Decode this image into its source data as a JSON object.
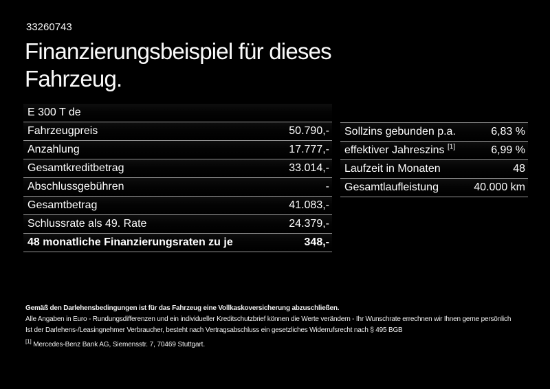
{
  "page": {
    "id_number": "33260743",
    "title_line1": "Finanzierungsbeispiel für dieses",
    "title_line2": "Fahrzeug."
  },
  "finance_table": {
    "model": "E 300 T de",
    "rows": [
      {
        "label": "Fahrzeugpreis",
        "value": "50.790,-"
      },
      {
        "label": "Anzahlung",
        "value": "17.777,-"
      },
      {
        "label": "Gesamtkreditbetrag",
        "value": "33.014,-"
      },
      {
        "label": "Abschlussgebühren",
        "value": "-"
      },
      {
        "label": "Gesamtbetrag",
        "value": "41.083,-"
      },
      {
        "label": "Schlussrate als 49. Rate",
        "value": "24.379,-"
      }
    ],
    "total_row": {
      "label": "48 monatliche Finanzierungsraten zu je",
      "value": "348,-"
    }
  },
  "conditions_table": {
    "rows": [
      {
        "label": "Sollzins gebunden p.a.",
        "value": "6,83 %"
      },
      {
        "label": "effektiver Jahreszins",
        "footnote_marker": "[1]",
        "value": "6,99 %"
      },
      {
        "label": "Laufzeit in Monaten",
        "value": "48"
      },
      {
        "label": "Gesamtlaufleistung",
        "value": "40.000 km"
      }
    ]
  },
  "disclaimer": {
    "insurance_line": "Gemäß den Darlehensbedingungen ist für das Fahrzeug eine Vollkaskoversicherung abzuschließen.",
    "line2": "Alle Angaben in Euro - Rundungsdifferenzen und ein individueller Kreditschutzbrief können die Werte verändern - Ihr Wunschrate errechnen wir Ihnen gerne persönlich",
    "line3": "Ist der Darlehens-/Leasingnehmer Verbraucher, besteht nach Vertragsabschluss ein gesetzliches Widerrufsrecht nach § 495 BGB",
    "footnote_marker": "[1]",
    "footnote_text": "Mercedes-Benz Bank AG, Siemensstr. 7, 70469 Stuttgart."
  },
  "colors": {
    "background": "#000000",
    "text": "#f4f4f4",
    "divider": "#9a9a9a"
  }
}
